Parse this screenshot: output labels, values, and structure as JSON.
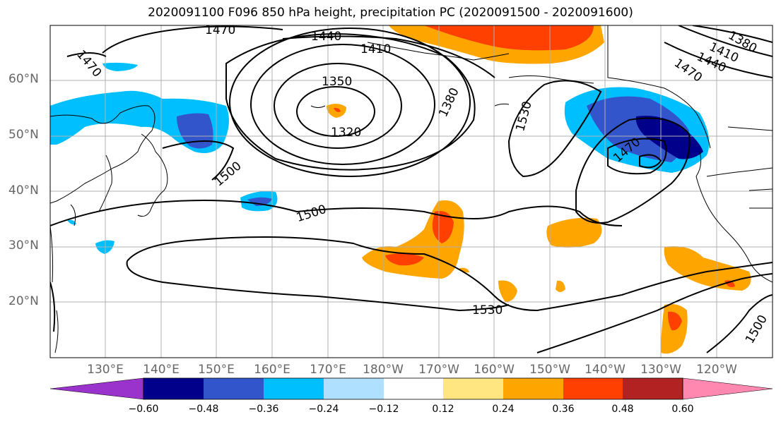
{
  "title": "2020091100 F096 850 hPa height, precipitation PC (2020091500 - 2020091600)",
  "lat_labels": [
    "60°N",
    "50°N",
    "40°N",
    "30°N",
    "20°N"
  ],
  "lon_labels": [
    "130°E",
    "140°E",
    "150°E",
    "160°E",
    "170°E",
    "180°W",
    "170°W",
    "160°W",
    "150°W",
    "140°W",
    "130°W",
    "120°W"
  ],
  "contour_labels": [
    "1470",
    "1440",
    "1410",
    "1350",
    "1320",
    "1380",
    "1530",
    "1470",
    "1500",
    "1500",
    "1530",
    "1500",
    "1380",
    "1410",
    "1440",
    "1470",
    "1470"
  ],
  "colorbar": {
    "ticks": [
      "−0.60",
      "−0.48",
      "−0.36",
      "−0.24",
      "−0.12",
      "0.12",
      "0.24",
      "0.36",
      "0.48",
      "0.60"
    ],
    "colors": [
      "#9933cc",
      "#00008b",
      "#3355cc",
      "#00bfff",
      "#b0e0ff",
      "#ffffff",
      "#ffe680",
      "#ffa500",
      "#ff4000",
      "#b22222",
      "#ff88b0"
    ]
  },
  "colors": {
    "contour": "#000000",
    "grid": "#b0b0b0",
    "axis_label": "#666666"
  }
}
